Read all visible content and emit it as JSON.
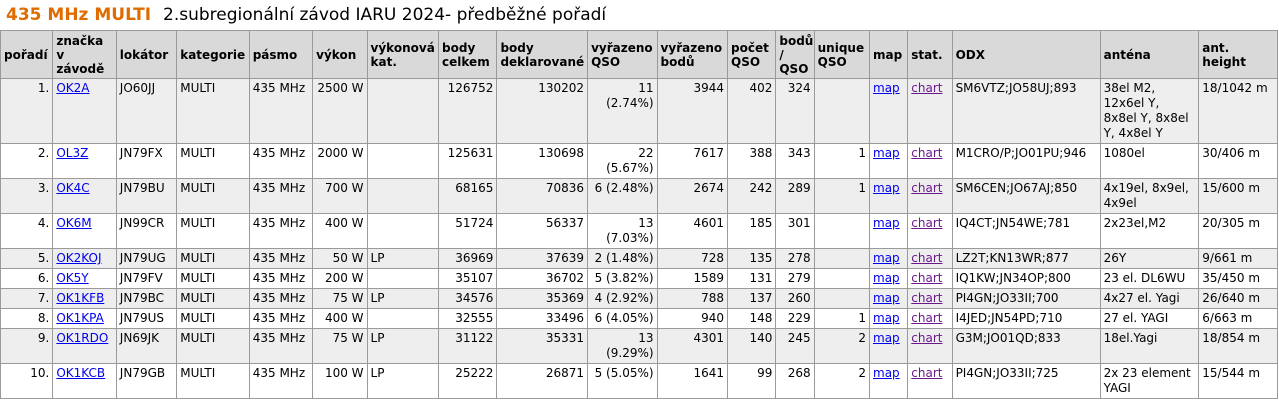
{
  "header": {
    "category": "435 MHz MULTI",
    "title": "2.subregionální závod IARU 2024- předběžné pořadí"
  },
  "columns": [
    "pořadí",
    "značka v závodě",
    "lokátor",
    "kategorie",
    "pásmo",
    "výkon",
    "výkonová kat.",
    "body celkem",
    "body deklarované",
    "vyřazeno QSO",
    "vyřazeno bodů",
    "počet QSO",
    "bodů / QSO",
    "unique QSO",
    "map",
    "stat.",
    "ODX",
    "anténa",
    "ant. height"
  ],
  "rows": [
    {
      "rank": "1.",
      "call": "OK2A",
      "loc": "JO60JJ",
      "cat": "MULTI",
      "band": "435 MHz",
      "power": "2500 W",
      "pcat": "",
      "total": "126752",
      "declared": "130202",
      "rej_qso": "11 (2.74%)",
      "rej_pts": "3944",
      "qso": "402",
      "ppq": "324",
      "unique": "",
      "map": "map",
      "stat": "chart",
      "odx": "SM6VTZ;JO58UJ;893",
      "ant": "38el M2, 12x6el Y, 8x8el Y, 8x8el Y, 4x8el Y",
      "height": "18/1042 m"
    },
    {
      "rank": "2.",
      "call": "OL3Z",
      "loc": "JN79FX",
      "cat": "MULTI",
      "band": "435 MHz",
      "power": "2000 W",
      "pcat": "",
      "total": "125631",
      "declared": "130698",
      "rej_qso": "22 (5.67%)",
      "rej_pts": "7617",
      "qso": "388",
      "ppq": "343",
      "unique": "1",
      "map": "map",
      "stat": "chart",
      "odx": "M1CRO/P;JO01PU;946",
      "ant": "1080el",
      "height": "30/406 m"
    },
    {
      "rank": "3.",
      "call": "OK4C",
      "loc": "JN79BU",
      "cat": "MULTI",
      "band": "435 MHz",
      "power": "700 W",
      "pcat": "",
      "total": "68165",
      "declared": "70836",
      "rej_qso": "6 (2.48%)",
      "rej_pts": "2674",
      "qso": "242",
      "ppq": "289",
      "unique": "1",
      "map": "map",
      "stat": "chart",
      "odx": "SM6CEN;JO67AJ;850",
      "ant": "4x19el, 8x9el, 4x9el",
      "height": "15/600 m"
    },
    {
      "rank": "4.",
      "call": "OK6M",
      "loc": "JN99CR",
      "cat": "MULTI",
      "band": "435 MHz",
      "power": "400 W",
      "pcat": "",
      "total": "51724",
      "declared": "56337",
      "rej_qso": "13 (7.03%)",
      "rej_pts": "4601",
      "qso": "185",
      "ppq": "301",
      "unique": "",
      "map": "map",
      "stat": "chart",
      "odx": "IQ4CT;JN54WE;781",
      "ant": "2x23el,M2",
      "height": "20/305 m"
    },
    {
      "rank": "5.",
      "call": "OK2KOJ",
      "loc": "JN79UG",
      "cat": "MULTI",
      "band": "435 MHz",
      "power": "50 W",
      "pcat": "LP",
      "total": "36969",
      "declared": "37639",
      "rej_qso": "2 (1.48%)",
      "rej_pts": "728",
      "qso": "135",
      "ppq": "278",
      "unique": "",
      "map": "map",
      "stat": "chart",
      "odx": "LZ2T;KN13WR;877",
      "ant": "26Y",
      "height": "9/661 m"
    },
    {
      "rank": "6.",
      "call": "OK5Y",
      "loc": "JN79FV",
      "cat": "MULTI",
      "band": "435 MHz",
      "power": "200 W",
      "pcat": "",
      "total": "35107",
      "declared": "36702",
      "rej_qso": "5 (3.82%)",
      "rej_pts": "1589",
      "qso": "131",
      "ppq": "279",
      "unique": "",
      "map": "map",
      "stat": "chart",
      "odx": "IQ1KW;JN34OP;800",
      "ant": "23 el. DL6WU",
      "height": "35/450 m"
    },
    {
      "rank": "7.",
      "call": "OK1KFB",
      "loc": "JN79BC",
      "cat": "MULTI",
      "band": "435 MHz",
      "power": "75 W",
      "pcat": "LP",
      "total": "34576",
      "declared": "35369",
      "rej_qso": "4 (2.92%)",
      "rej_pts": "788",
      "qso": "137",
      "ppq": "260",
      "unique": "",
      "map": "map",
      "stat": "chart",
      "odx": "PI4GN;JO33II;700",
      "ant": "4x27 el. Yagi",
      "height": "26/640 m"
    },
    {
      "rank": "8.",
      "call": "OK1KPA",
      "loc": "JN79US",
      "cat": "MULTI",
      "band": "435 MHz",
      "power": "400 W",
      "pcat": "",
      "total": "32555",
      "declared": "33496",
      "rej_qso": "6 (4.05%)",
      "rej_pts": "940",
      "qso": "148",
      "ppq": "229",
      "unique": "1",
      "map": "map",
      "stat": "chart",
      "odx": "I4JED;JN54PD;710",
      "ant": "27 el. YAGI",
      "height": "6/663 m"
    },
    {
      "rank": "9.",
      "call": "OK1RDO",
      "loc": "JN69JK",
      "cat": "MULTI",
      "band": "435 MHz",
      "power": "75 W",
      "pcat": "LP",
      "total": "31122",
      "declared": "35331",
      "rej_qso": "13 (9.29%)",
      "rej_pts": "4301",
      "qso": "140",
      "ppq": "245",
      "unique": "2",
      "map": "map",
      "stat": "chart",
      "odx": "G3M;JO01QD;833",
      "ant": "18el.Yagi",
      "height": "18/854 m"
    },
    {
      "rank": "10.",
      "call": "OK1KCB",
      "loc": "JN79GB",
      "cat": "MULTI",
      "band": "435 MHz",
      "power": "100 W",
      "pcat": "LP",
      "total": "25222",
      "declared": "26871",
      "rej_qso": "5 (5.05%)",
      "rej_pts": "1641",
      "qso": "99",
      "ppq": "268",
      "unique": "2",
      "map": "map",
      "stat": "chart",
      "odx": "PI4GN;JO33II;725",
      "ant": "2x 23 element YAGI",
      "height": "15/544 m"
    }
  ],
  "colors": {
    "category": "#e06c00",
    "header_bg": "#d9d9d9",
    "row_alt": "#eeeeee",
    "link": "#0000ee",
    "link_visited": "#6a1a8a"
  }
}
